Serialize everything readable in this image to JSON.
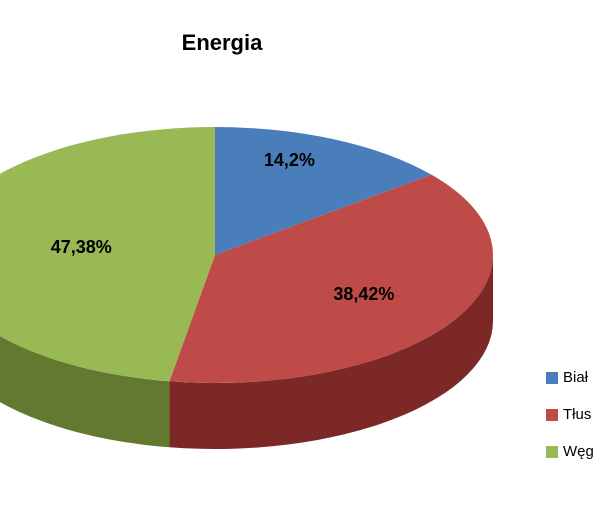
{
  "chart_data": {
    "type": "pie3d",
    "title": "Energia",
    "categories": [
      "Biał",
      "Tłus",
      "Węg"
    ],
    "values": [
      14.2,
      38.42,
      47.38
    ],
    "value_labels": [
      "14,2%",
      "38,42%",
      "47,38%"
    ],
    "colors": [
      "#4a7ebb",
      "#be4b48",
      "#98b954"
    ],
    "side_colors": [
      "#2f5482",
      "#7b2826",
      "#62792f"
    ]
  }
}
